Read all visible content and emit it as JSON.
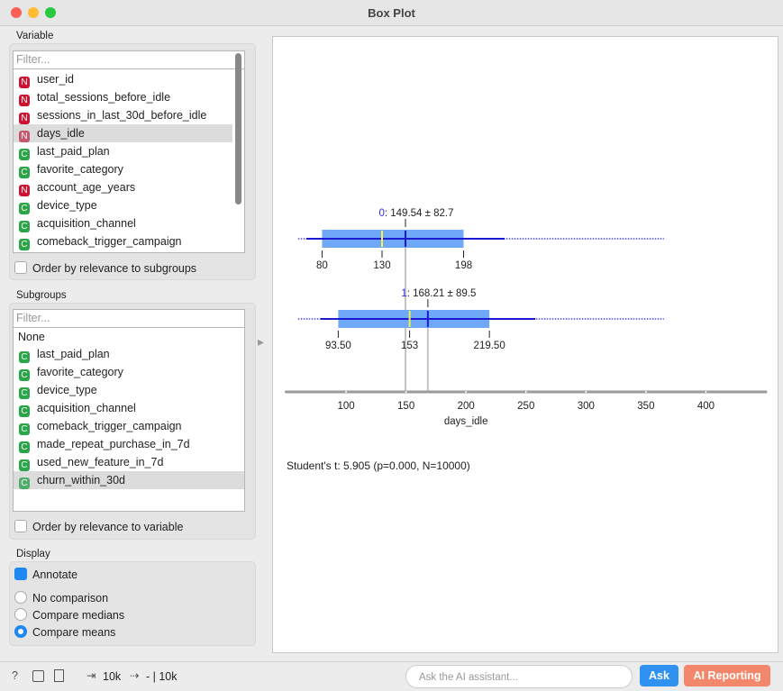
{
  "window": {
    "title": "Box Plot"
  },
  "variable": {
    "label": "Variable",
    "filter": "Filter...",
    "selected": 3,
    "items": [
      {
        "badge": "N",
        "name": "user_id"
      },
      {
        "badge": "N",
        "name": "total_sessions_before_idle"
      },
      {
        "badge": "N",
        "name": "sessions_in_last_30d_before_idle"
      },
      {
        "badge": "N",
        "name": "days_idle"
      },
      {
        "badge": "C",
        "name": "last_paid_plan"
      },
      {
        "badge": "C",
        "name": "favorite_category"
      },
      {
        "badge": "N",
        "name": "account_age_years"
      },
      {
        "badge": "C",
        "name": "device_type"
      },
      {
        "badge": "C",
        "name": "acquisition_channel"
      },
      {
        "badge": "C",
        "name": "comeback_trigger_campaign"
      }
    ],
    "order": "Order by relevance to subgroups"
  },
  "subgroups": {
    "label": "Subgroups",
    "filter": "Filter...",
    "none": "None",
    "selected": 7,
    "items": [
      {
        "badge": "C",
        "name": "last_paid_plan"
      },
      {
        "badge": "C",
        "name": "favorite_category"
      },
      {
        "badge": "C",
        "name": "device_type"
      },
      {
        "badge": "C",
        "name": "acquisition_channel"
      },
      {
        "badge": "C",
        "name": "comeback_trigger_campaign"
      },
      {
        "badge": "C",
        "name": "made_repeat_purchase_in_7d"
      },
      {
        "badge": "C",
        "name": "used_new_feature_in_7d"
      },
      {
        "badge": "C",
        "name": "churn_within_30d"
      }
    ],
    "order": "Order by relevance to variable"
  },
  "display": {
    "label": "Display",
    "annotate": "Annotate",
    "options": [
      "No comparison",
      "Compare medians",
      "Compare means"
    ],
    "selected": 2
  },
  "footer": {
    "input": "10k",
    "output": "- | 10k",
    "ask_placeholder": "Ask the AI assistant...",
    "ask": "Ask",
    "report": "AI Reporting"
  },
  "chart_data": {
    "type": "box",
    "x_label": "days_idle",
    "xlim": [
      50,
      450
    ],
    "xticks": [
      100,
      150,
      200,
      250,
      300,
      350,
      400
    ],
    "color": "#6fa8f7",
    "series": [
      {
        "name": "0",
        "min": 60,
        "q1": 80,
        "median": 130,
        "q3": 198,
        "max": 365,
        "mean": 149.54,
        "sd": 82.7,
        "mean_label": "149.54 ± 82.7",
        "value_labels": {
          "q1": "80",
          "median": "130",
          "q3": "198"
        }
      },
      {
        "name": "1",
        "min": 60,
        "q1": 93.5,
        "median": 153,
        "q3": 219.5,
        "max": 365,
        "mean": 168.21,
        "sd": 89.5,
        "mean_label": "168.21 ± 89.5",
        "value_labels": {
          "q1": "93.50",
          "median": "153",
          "q3": "219.50"
        }
      }
    ],
    "stat": "Student's t: 5.905 (p=0.000, N=10000)"
  }
}
